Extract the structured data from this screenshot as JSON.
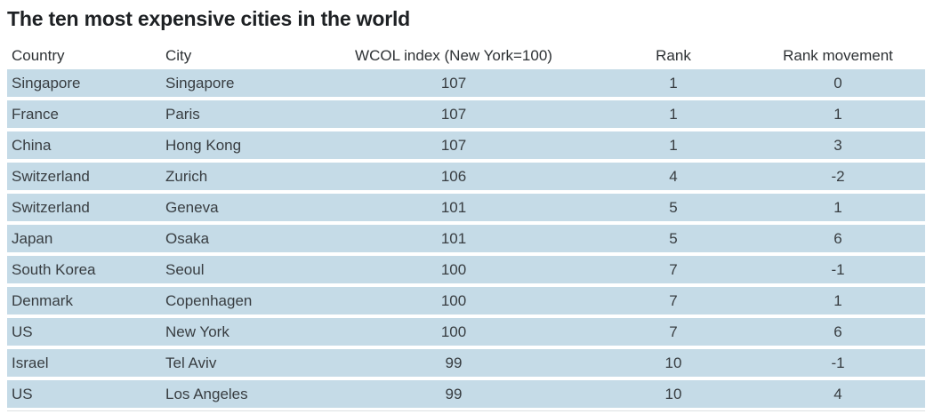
{
  "title": "The ten most expensive cities in the world",
  "colors": {
    "row_band": "#c5dbe7",
    "title_text": "#1e2124",
    "header_text": "#2d3134",
    "cell_text": "#383d41"
  },
  "chart_data": {
    "type": "table",
    "title": "The ten most expensive cities in the world",
    "columns": [
      "Country",
      "City",
      "WCOL index (New York=100)",
      "Rank",
      "Rank movement"
    ],
    "rows": [
      [
        "Singapore",
        "Singapore",
        107,
        1,
        0
      ],
      [
        "France",
        "Paris",
        107,
        1,
        1
      ],
      [
        "China",
        "Hong Kong",
        107,
        1,
        3
      ],
      [
        "Switzerland",
        "Zurich",
        106,
        4,
        -2
      ],
      [
        "Switzerland",
        "Geneva",
        101,
        5,
        1
      ],
      [
        "Japan",
        "Osaka",
        101,
        5,
        6
      ],
      [
        "South Korea",
        "Seoul",
        100,
        7,
        -1
      ],
      [
        "Denmark",
        "Copenhagen",
        100,
        7,
        1
      ],
      [
        "US",
        "New York",
        100,
        7,
        6
      ],
      [
        "Israel",
        "Tel Aviv",
        99,
        10,
        -1
      ],
      [
        "US",
        "Los Angeles",
        99,
        10,
        4
      ]
    ],
    "layout": {
      "row_band_color": "#c5dbe7",
      "row_separator_color": "#ffffff",
      "column_alignments": [
        "left",
        "left",
        "center",
        "center",
        "center"
      ]
    }
  }
}
